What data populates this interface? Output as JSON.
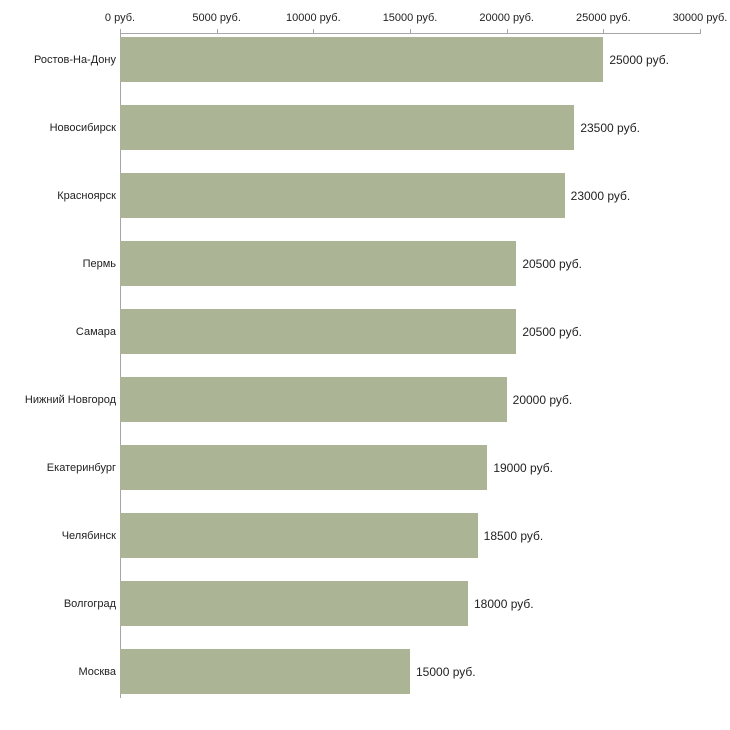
{
  "chart_data": {
    "type": "bar",
    "orientation": "horizontal",
    "title": "",
    "xlabel": "",
    "ylabel": "",
    "grid": false,
    "legend": false,
    "xlim": [
      0,
      30000
    ],
    "x_ticks": [
      "0 руб.",
      "5000 руб.",
      "10000 руб.",
      "15000 руб.",
      "20000 руб.",
      "25000 руб.",
      "30000 руб."
    ],
    "x_tick_values": [
      0,
      5000,
      10000,
      15000,
      20000,
      25000,
      30000
    ],
    "categories": [
      "Ростов-На-Дону",
      "Новосибирск",
      "Красноярск",
      "Пермь",
      "Самара",
      "Нижний Новгород",
      "Екатеринбург",
      "Челябинск",
      "Волгоград",
      "Москва"
    ],
    "values": [
      25000,
      23500,
      23000,
      20500,
      20500,
      20000,
      19000,
      18500,
      18000,
      15000
    ],
    "value_labels": [
      "25000 руб.",
      "23500 руб.",
      "23000 руб.",
      "20500 руб.",
      "20500 руб.",
      "20000 руб.",
      "19000 руб.",
      "18500 руб.",
      "18000 руб.",
      "15000 руб."
    ],
    "bar_color": "#abb494",
    "axis_color": "#a6a6a6",
    "text_color": "#222222",
    "background_color": "#ffffff"
  }
}
